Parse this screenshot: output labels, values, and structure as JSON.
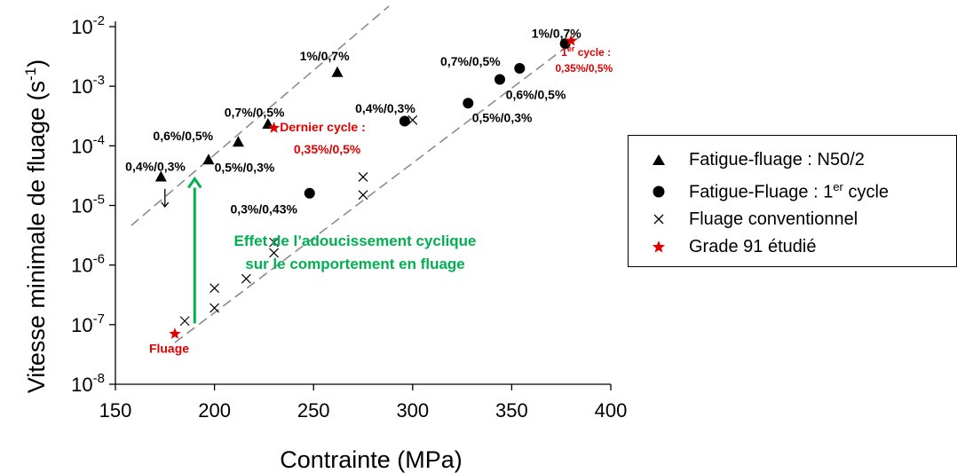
{
  "chart_data": {
    "type": "scatter",
    "xlabel": "Contrainte (MPa)",
    "ylabel_main": "Vitesse minimale de fluage (s",
    "ylabel_sup": "-1",
    "ylabel_close": ")",
    "xlim": [
      150,
      400
    ],
    "ylim_log10": [
      -8,
      -2
    ],
    "x_ticks": [
      "150",
      "200",
      "250",
      "300",
      "350",
      "400"
    ],
    "y_tick_bases": [
      "10",
      "10",
      "10",
      "10",
      "10",
      "10",
      "10"
    ],
    "y_tick_exps": [
      "-8",
      "-7",
      "-6",
      "-5",
      "-4",
      "-3",
      "-2"
    ],
    "scale": "log-y",
    "grid": false,
    "legend_position": "right",
    "series": [
      {
        "name": "Fatigue-fluage : N50/2",
        "marker": "triangle",
        "color": "#000000",
        "points": [
          {
            "x": 173,
            "y": 3e-05
          },
          {
            "x": 197,
            "y": 5.8e-05
          },
          {
            "x": 212,
            "y": 0.000115
          },
          {
            "x": 227,
            "y": 0.00023
          },
          {
            "x": 262,
            "y": 0.0017
          }
        ]
      },
      {
        "name_main": "Fatigue-Fluage : 1",
        "name_sup": "er",
        "name_tail": " cycle",
        "marker": "circle",
        "color": "#000000",
        "points": [
          {
            "x": 248,
            "y": 1.6e-05
          },
          {
            "x": 296,
            "y": 0.00026
          },
          {
            "x": 328,
            "y": 0.00052
          },
          {
            "x": 344,
            "y": 0.0013
          },
          {
            "x": 354,
            "y": 0.002
          },
          {
            "x": 377,
            "y": 0.0052
          }
        ]
      },
      {
        "name": "Fluage conventionnel",
        "marker": "x",
        "color": "#000000",
        "points": [
          {
            "x": 185,
            "y": 1.15e-07
          },
          {
            "x": 200,
            "y": 1.9e-07
          },
          {
            "x": 200,
            "y": 4.1e-07
          },
          {
            "x": 216,
            "y": 5.9e-07
          },
          {
            "x": 230,
            "y": 1.6e-06
          },
          {
            "x": 230,
            "y": 2.4e-06
          },
          {
            "x": 275,
            "y": 1.5e-05
          },
          {
            "x": 275,
            "y": 3e-05
          },
          {
            "x": 300,
            "y": 0.00027
          }
        ]
      },
      {
        "name": "Grade 91 étudié",
        "marker": "star",
        "color": "#e00000",
        "points": [
          {
            "x": 180,
            "y": 7e-08
          },
          {
            "x": 230,
            "y": 0.0002
          },
          {
            "x": 380,
            "y": 0.0058
          }
        ]
      }
    ],
    "trendlines": [
      {
        "x": [
          158,
          288
        ],
        "y": [
          4.6e-06,
          0.022
        ]
      },
      {
        "x": [
          180,
          385
        ],
        "y": [
          5e-08,
          0.007
        ]
      }
    ],
    "annotations": {
      "black": [
        {
          "text": "0,4%/0,3%",
          "x": 155,
          "y": 3.8e-05
        },
        {
          "text": "0,6%/0,5%",
          "x": 169,
          "y": 0.000125
        },
        {
          "text": "0,5%/0,3%",
          "x": 200,
          "y": 3.7e-05
        },
        {
          "text": "0,7%/0,5%",
          "x": 205,
          "y": 0.00031
        },
        {
          "text": "1%/0,7%",
          "x": 243,
          "y": 0.0027
        },
        {
          "text": "0,3%/0,43%",
          "x": 208,
          "y": 7.4e-06
        },
        {
          "text": "0,4%/0,3%",
          "x": 271,
          "y": 0.00036
        },
        {
          "text": "0,5%/0,3%",
          "x": 330,
          "y": 0.00025
        },
        {
          "text": "0,6%/0,5%",
          "x": 347,
          "y": 0.00061
        },
        {
          "text": "0,7%/0,5%",
          "x": 314,
          "y": 0.0022
        },
        {
          "text": "1%/0,7%",
          "x": 360,
          "y": 0.0065
        }
      ],
      "red": [
        {
          "text": "Fluage",
          "x": 167,
          "y": 3.4e-08
        },
        {
          "text": "Dernier cycle :",
          "x": 233,
          "y": 0.000175
        },
        {
          "text": "0,35%/0,5%",
          "x": 240,
          "y": 7.4e-05
        }
      ],
      "red_cycle": {
        "num": "1",
        "sup": "er",
        "rest": " cycle :",
        "x": 375,
        "y": 0.0032
      },
      "red_cycle_value": {
        "text": "0,35%/0,5%",
        "x": 372,
        "y": 0.00175
      },
      "green_line1": "Effet de l’adoucissement cyclique",
      "green_line2": "sur le comportement en fluage",
      "green_color": "#00b050",
      "green_arrow": {
        "x": 190,
        "y_from": 1.05e-07,
        "y_to": 2.8e-05
      },
      "black_arrow": {
        "x": 175,
        "y_from": 1.9e-05,
        "y_to": 9.5e-06
      }
    }
  }
}
